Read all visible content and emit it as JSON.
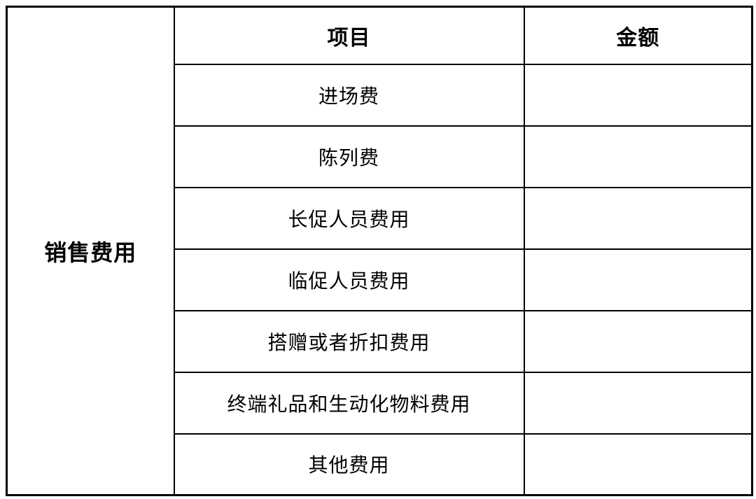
{
  "table": {
    "group_label": "销售费用",
    "columns": {
      "item": "项目",
      "amount": "金额"
    },
    "rows": [
      {
        "item": "进场费",
        "amount": ""
      },
      {
        "item": "陈列费",
        "amount": ""
      },
      {
        "item": "长促人员费用",
        "amount": ""
      },
      {
        "item": "临促人员费用",
        "amount": ""
      },
      {
        "item": "搭赠或者折扣费用",
        "amount": ""
      },
      {
        "item": "终端礼品和生动化物料费用",
        "amount": ""
      },
      {
        "item": "其他费用",
        "amount": ""
      }
    ],
    "colors": {
      "header_bg": "#9BBB59",
      "border": "#000000",
      "cell_bg": "#FFFFFF",
      "text": "#000000"
    }
  }
}
